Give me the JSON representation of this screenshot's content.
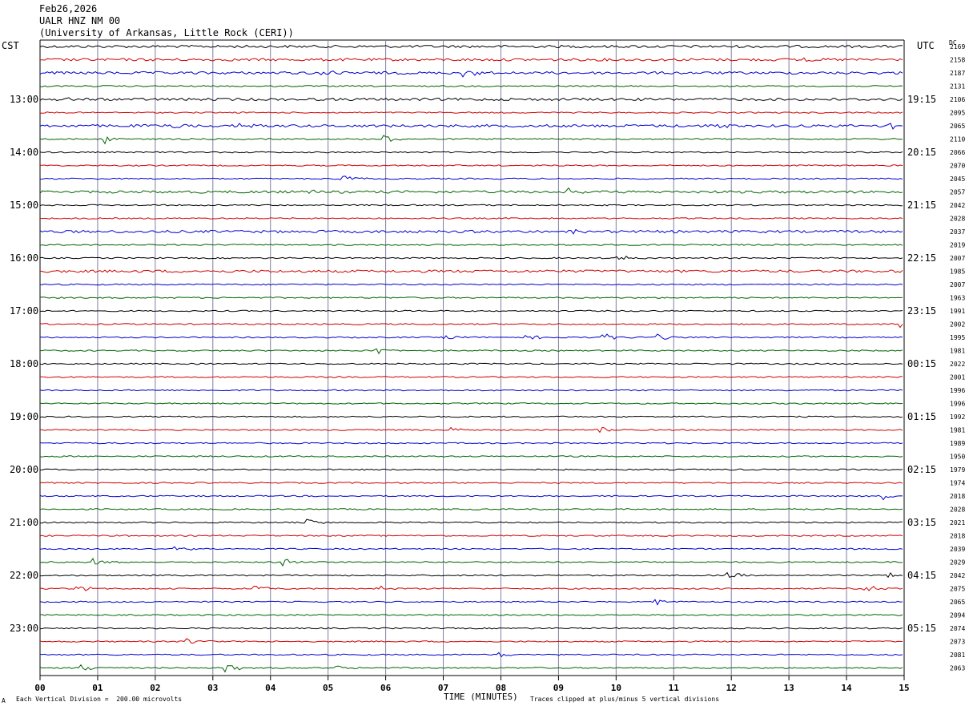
{
  "header": {
    "date": "Feb26,2026",
    "station": "UALR HNZ NM 00",
    "institution": "(University of Arkansas, Little Rock (CERI))"
  },
  "left_zone": "CST",
  "right_zone": "UTC",
  "dc_label": "DC",
  "footer": {
    "scale_note": "Each Vertical Division =  200.00 microvolts",
    "clip_note": "Traces clipped at plus/minus 5 vertical divisions",
    "corner_mark": "A"
  },
  "colors": [
    "#000000",
    "#d00000",
    "#0000d0",
    "#006400"
  ],
  "chart_data": {
    "type": "line",
    "title": "UALR HNZ NM 00",
    "xlabel": "TIME (MINUTES)",
    "ylabel": "",
    "x_ticks": [
      "00",
      "01",
      "02",
      "03",
      "04",
      "05",
      "06",
      "07",
      "08",
      "09",
      "10",
      "11",
      "12",
      "13",
      "14",
      "15"
    ],
    "xlim": [
      0,
      15
    ],
    "minutes_per_trace": 15,
    "grid": true,
    "trace_count": 48,
    "left_hour_labels": [
      {
        "row": 4,
        "label": "13:00"
      },
      {
        "row": 8,
        "label": "14:00"
      },
      {
        "row": 12,
        "label": "15:00"
      },
      {
        "row": 16,
        "label": "16:00"
      },
      {
        "row": 20,
        "label": "17:00"
      },
      {
        "row": 24,
        "label": "18:00"
      },
      {
        "row": 28,
        "label": "19:00"
      },
      {
        "row": 32,
        "label": "20:00"
      },
      {
        "row": 36,
        "label": "21:00"
      },
      {
        "row": 40,
        "label": "22:00"
      },
      {
        "row": 44,
        "label": "23:00"
      }
    ],
    "right_hour_labels": [
      {
        "row": 4,
        "label": "19:15"
      },
      {
        "row": 8,
        "label": "20:15"
      },
      {
        "row": 12,
        "label": "21:15"
      },
      {
        "row": 16,
        "label": "22:15"
      },
      {
        "row": 20,
        "label": "23:15"
      },
      {
        "row": 24,
        "label": "00:15"
      },
      {
        "row": 28,
        "label": "01:15"
      },
      {
        "row": 32,
        "label": "02:15"
      },
      {
        "row": 36,
        "label": "03:15"
      },
      {
        "row": 40,
        "label": "04:15"
      },
      {
        "row": 44,
        "label": "05:15"
      }
    ],
    "dc_offsets": [
      "2169",
      "2158",
      "2187",
      "2131",
      "2106",
      "2095",
      "2065",
      "2110",
      "2066",
      "2070",
      "2045",
      "2057",
      "2042",
      "2028",
      "2037",
      "2019",
      "2007",
      "1985",
      "2007",
      "1963",
      "1991",
      "2002",
      "1995",
      "1981",
      "2022",
      "2001",
      "1996",
      "1996",
      "1992",
      "1981",
      "1989",
      "1950",
      "1979",
      "1974",
      "2018",
      "2028",
      "2021",
      "2018",
      "2039",
      "2029",
      "2042",
      "2075",
      "2065",
      "2094",
      "2074",
      "2073",
      "2081",
      "2063"
    ],
    "noise_level": [
      2,
      2,
      2,
      1,
      2,
      1,
      2,
      1,
      1,
      1,
      1,
      2,
      1,
      1,
      2,
      1,
      1,
      2,
      1,
      1,
      1,
      1,
      1,
      1,
      1,
      1,
      1,
      1,
      1,
      1,
      1,
      1,
      1,
      1,
      1,
      1,
      1,
      1,
      1,
      1,
      1,
      1,
      1,
      1,
      1,
      1,
      1,
      1
    ],
    "events": [
      {
        "row": 1,
        "minute": 13.0,
        "amp": 5
      },
      {
        "row": 2,
        "minute": 4.8,
        "amp": 6
      },
      {
        "row": 2,
        "minute": 7.3,
        "amp": 6
      },
      {
        "row": 4,
        "minute": 0.3,
        "amp": 5
      },
      {
        "row": 6,
        "minute": 2.3,
        "amp": 5
      },
      {
        "row": 6,
        "minute": 3.4,
        "amp": 5
      },
      {
        "row": 6,
        "minute": 11.6,
        "amp": 6
      },
      {
        "row": 6,
        "minute": 14.7,
        "amp": 5
      },
      {
        "row": 7,
        "minute": 1.1,
        "amp": 6
      },
      {
        "row": 7,
        "minute": 5.9,
        "amp": 7
      },
      {
        "row": 10,
        "minute": 5.2,
        "amp": 5
      },
      {
        "row": 11,
        "minute": 4.6,
        "amp": 5
      },
      {
        "row": 11,
        "minute": 9.1,
        "amp": 5
      },
      {
        "row": 14,
        "minute": 9.1,
        "amp": 5
      },
      {
        "row": 16,
        "minute": 10.0,
        "amp": 5
      },
      {
        "row": 21,
        "minute": 14.9,
        "amp": 5
      },
      {
        "row": 22,
        "minute": 7.0,
        "amp": 5
      },
      {
        "row": 22,
        "minute": 8.4,
        "amp": 5
      },
      {
        "row": 22,
        "minute": 9.7,
        "amp": 7
      },
      {
        "row": 22,
        "minute": 10.7,
        "amp": 6
      },
      {
        "row": 23,
        "minute": 5.8,
        "amp": 8
      },
      {
        "row": 29,
        "minute": 7.1,
        "amp": 5
      },
      {
        "row": 29,
        "minute": 9.7,
        "amp": 5
      },
      {
        "row": 34,
        "minute": 14.6,
        "amp": 6
      },
      {
        "row": 36,
        "minute": 4.6,
        "amp": 5
      },
      {
        "row": 38,
        "minute": 2.3,
        "amp": 6
      },
      {
        "row": 39,
        "minute": 0.9,
        "amp": 5
      },
      {
        "row": 39,
        "minute": 4.2,
        "amp": 6
      },
      {
        "row": 40,
        "minute": 11.9,
        "amp": 6
      },
      {
        "row": 40,
        "minute": 14.7,
        "amp": 6
      },
      {
        "row": 41,
        "minute": 0.6,
        "amp": 5
      },
      {
        "row": 41,
        "minute": 3.7,
        "amp": 7
      },
      {
        "row": 41,
        "minute": 5.8,
        "amp": 6
      },
      {
        "row": 41,
        "minute": 14.3,
        "amp": 5
      },
      {
        "row": 42,
        "minute": 10.6,
        "amp": 6
      },
      {
        "row": 45,
        "minute": 2.5,
        "amp": 7
      },
      {
        "row": 46,
        "minute": 7.9,
        "amp": 5
      },
      {
        "row": 47,
        "minute": 0.7,
        "amp": 5
      },
      {
        "row": 47,
        "minute": 3.2,
        "amp": 6
      },
      {
        "row": 47,
        "minute": 5.1,
        "amp": 5
      }
    ]
  }
}
